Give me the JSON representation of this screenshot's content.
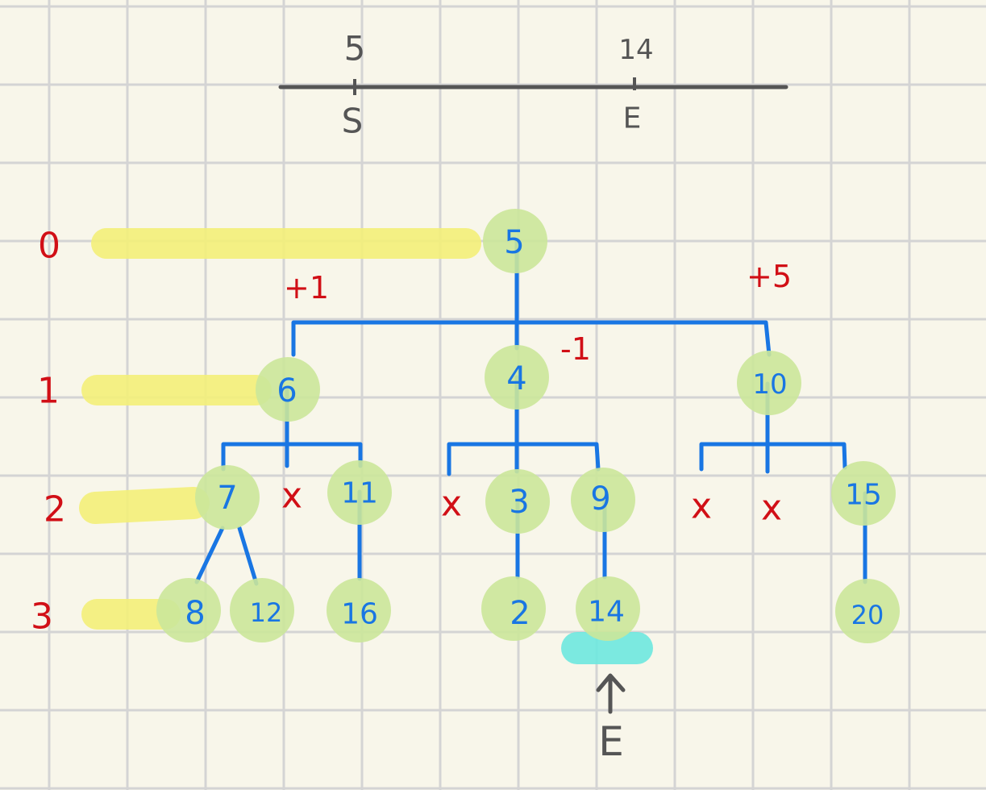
{
  "colors": {
    "background": "#f8f6ea",
    "grid": "#d4d4d4",
    "edge": "#1976e3",
    "node_fill": "#cbe79a",
    "node_text": "#1976e3",
    "annotation": "#d10f16",
    "highlight_yellow": "#f4f07a",
    "highlight_cyan": "#6ee8e0",
    "number_line": "#555555"
  },
  "number_line": {
    "start_value": "5",
    "start_label": "S",
    "end_value": "14",
    "end_label": "E"
  },
  "levels": [
    "0",
    "1",
    "2",
    "3"
  ],
  "tree": {
    "root": "5",
    "level1": [
      "6",
      "4",
      "10"
    ],
    "level2": [
      "7",
      "11",
      "3",
      "9",
      "15"
    ],
    "level3": [
      "8",
      "12",
      "16",
      "2",
      "14",
      "20"
    ]
  },
  "missing_marks": [
    "x",
    "x",
    "x",
    "x"
  ],
  "annotations": {
    "left_delta": "+1",
    "middle_delta": "-1",
    "right_delta": "+5",
    "end_pointer": "↑",
    "end_label": "E"
  },
  "icons": {
    "end_arrow": "up-arrow-icon"
  }
}
